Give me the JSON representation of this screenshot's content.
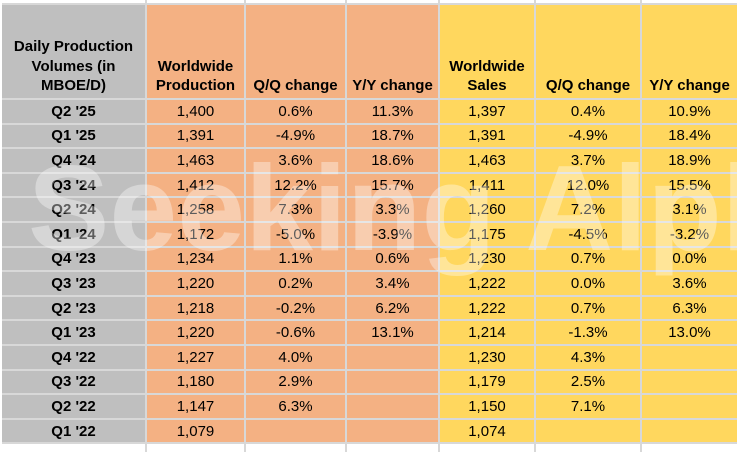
{
  "watermark": {
    "text": "Seeking Alpha",
    "color": "#FFFFFF",
    "opacity": 0.36
  },
  "colors": {
    "gray": "#BFBFBF",
    "orange": "#F4B183",
    "yellow": "#FFD75E",
    "gridline": "#D8D8D8",
    "text": "#000000"
  },
  "chart_data": {
    "type": "table",
    "title": "Daily Production Volumes (in MBOE/D)",
    "columns": [
      "Daily Production Volumes (in MBOE/D)",
      "Worldwide Production",
      "Q/Q change",
      "Y/Y change",
      "Worldwide Sales",
      "Q/Q change",
      "Y/Y change"
    ],
    "rows": [
      {
        "cells": [
          "Q2 '25",
          "1,400",
          "0.6%",
          "11.3%",
          "1,397",
          "0.4%",
          "10.9%"
        ]
      },
      {
        "cells": [
          "Q1 '25",
          "1,391",
          "-4.9%",
          "18.7%",
          "1,391",
          "-4.9%",
          "18.4%"
        ]
      },
      {
        "cells": [
          "Q4 '24",
          "1,463",
          "3.6%",
          "18.6%",
          "1,463",
          "3.7%",
          "18.9%"
        ]
      },
      {
        "cells": [
          "Q3 '24",
          "1,412",
          "12.2%",
          "15.7%",
          "1,411",
          "12.0%",
          "15.5%"
        ]
      },
      {
        "cells": [
          "Q2 '24",
          "1,258",
          "7.3%",
          "3.3%",
          "1,260",
          "7.2%",
          "3.1%"
        ]
      },
      {
        "cells": [
          "Q1 '24",
          "1,172",
          "-5.0%",
          "-3.9%",
          "1,175",
          "-4.5%",
          "-3.2%"
        ]
      },
      {
        "cells": [
          "Q4 '23",
          "1,234",
          "1.1%",
          "0.6%",
          "1,230",
          "0.7%",
          "0.0%"
        ]
      },
      {
        "cells": [
          "Q3 '23",
          "1,220",
          "0.2%",
          "3.4%",
          "1,222",
          "0.0%",
          "3.6%"
        ]
      },
      {
        "cells": [
          "Q2 '23",
          "1,218",
          "-0.2%",
          "6.2%",
          "1,222",
          "0.7%",
          "6.3%"
        ]
      },
      {
        "cells": [
          "Q1 '23",
          "1,220",
          "-0.6%",
          "13.1%",
          "1,214",
          "-1.3%",
          "13.0%"
        ]
      },
      {
        "cells": [
          "Q4 '22",
          "1,227",
          "4.0%",
          "",
          "1,230",
          "4.3%",
          ""
        ]
      },
      {
        "cells": [
          "Q3 '22",
          "1,180",
          "2.9%",
          "",
          "1,179",
          "2.5%",
          ""
        ]
      },
      {
        "cells": [
          "Q2 '22",
          "1,147",
          "6.3%",
          "",
          "1,150",
          "7.1%",
          ""
        ]
      },
      {
        "cells": [
          "Q1 '22",
          "1,079",
          "",
          "",
          "1,074",
          "",
          ""
        ]
      }
    ]
  }
}
